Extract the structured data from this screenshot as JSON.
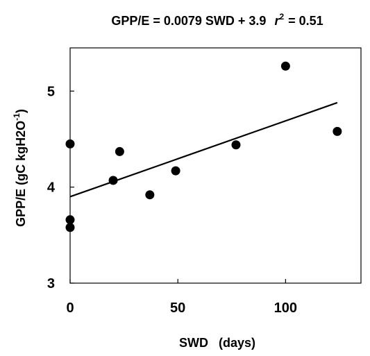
{
  "chart_data": {
    "type": "scatter",
    "title_parts": {
      "prefix": "GPP/E = 0.0079 SWD + 3.9",
      "r": "r",
      "sup": "2",
      "suffix": "= 0.51"
    },
    "xlabel": "SWD   (days)",
    "ylabel_parts": {
      "main": "GPP/E  (gC kgH2O",
      "sup": "-1",
      "close": ")"
    },
    "xlim": [
      0,
      135
    ],
    "ylim": [
      3,
      5.45
    ],
    "xticks": [
      0,
      50,
      100
    ],
    "yticks": [
      3,
      4,
      5
    ],
    "xtick_labels": [
      "0",
      "50",
      "100"
    ],
    "ytick_labels": [
      "3",
      "4",
      "5"
    ],
    "grid": false,
    "legend": "none",
    "points": [
      {
        "x": 0,
        "y": 4.45
      },
      {
        "x": 0,
        "y": 3.66
      },
      {
        "x": 0,
        "y": 3.58
      },
      {
        "x": 20,
        "y": 4.07
      },
      {
        "x": 23,
        "y": 4.37
      },
      {
        "x": 37,
        "y": 3.92
      },
      {
        "x": 49,
        "y": 4.17
      },
      {
        "x": 77,
        "y": 4.44
      },
      {
        "x": 100,
        "y": 5.26
      },
      {
        "x": 124,
        "y": 4.58
      }
    ],
    "trendline": {
      "slope": 0.0079,
      "intercept": 3.9,
      "x_range": [
        0,
        124
      ]
    }
  }
}
